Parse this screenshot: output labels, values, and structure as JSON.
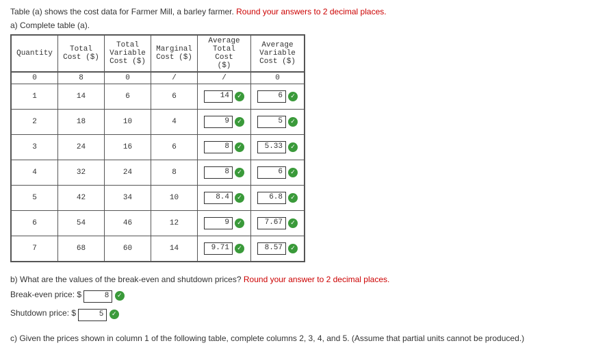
{
  "intro": {
    "text1": "Table (a) shows the cost data for Farmer Mill, a barley farmer. ",
    "text1_red": "Round your answers to 2 decimal places.",
    "text2": "a) Complete table (a)."
  },
  "headers": {
    "qty": "Quantity",
    "tc": "Total Cost ($)",
    "tvc": "Total Variable Cost ($)",
    "mc": "Marginal Cost ($)",
    "atc": "Average Total Cost ($)",
    "avc": "Average Variable Cost ($)"
  },
  "rows": {
    "r0": {
      "q": "0",
      "tc": "8",
      "tvc": "0",
      "mc": "/",
      "atc": "/",
      "avc": "0"
    },
    "r1": {
      "q": "1",
      "tc": "14",
      "tvc": "6",
      "mc": "6",
      "atc": "14",
      "avc": "6"
    },
    "r2": {
      "q": "2",
      "tc": "18",
      "tvc": "10",
      "mc": "4",
      "atc": "9",
      "avc": "5"
    },
    "r3": {
      "q": "3",
      "tc": "24",
      "tvc": "16",
      "mc": "6",
      "atc": "8",
      "avc": "5.33"
    },
    "r4": {
      "q": "4",
      "tc": "32",
      "tvc": "24",
      "mc": "8",
      "atc": "8",
      "avc": "6"
    },
    "r5": {
      "q": "5",
      "tc": "42",
      "tvc": "34",
      "mc": "10",
      "atc": "8.4",
      "avc": "6.8"
    },
    "r6": {
      "q": "6",
      "tc": "54",
      "tvc": "46",
      "mc": "12",
      "atc": "9",
      "avc": "7.67"
    },
    "r7": {
      "q": "7",
      "tc": "68",
      "tvc": "60",
      "mc": "14",
      "atc": "9.71",
      "avc": "8.57"
    }
  },
  "partB": {
    "question": "b) What are the values of the break-even and shutdown prices? ",
    "question_red": "Round your answer to 2 decimal places.",
    "breakeven_label": "Break-even price: $",
    "breakeven_val": "8",
    "shutdown_label": "Shutdown price: $",
    "shutdown_val": "5"
  },
  "partC": {
    "text": "c) Given the prices shown in column 1 of  the following table, complete columns 2, 3, 4, and 5. (Assume that partial units cannot be produced.)"
  }
}
